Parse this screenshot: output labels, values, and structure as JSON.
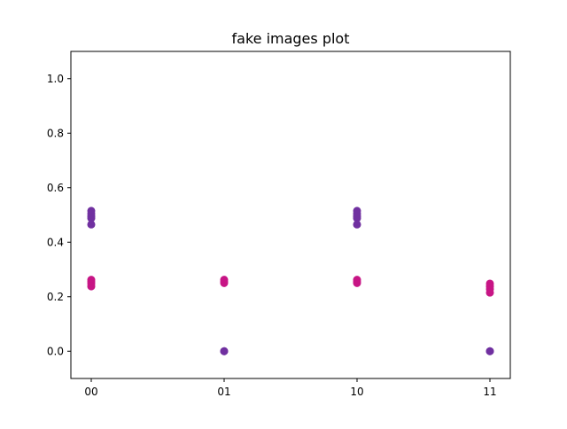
{
  "chart_data": {
    "type": "scatter",
    "title": "fake images plot",
    "xlabel": "",
    "ylabel": "",
    "categories": [
      "00",
      "01",
      "10",
      "11"
    ],
    "ylim": [
      -0.1,
      1.1
    ],
    "yticks": [
      0.0,
      0.2,
      0.4,
      0.6,
      0.8,
      1.0
    ],
    "ytick_labels": [
      "0.0",
      "0.2",
      "0.4",
      "0.6",
      "0.8",
      "1.0"
    ],
    "grid": false,
    "legend": "none",
    "series": [
      {
        "color": "#7030a0",
        "points": [
          {
            "x": "00",
            "y": 0.515
          },
          {
            "x": "00",
            "y": 0.505
          },
          {
            "x": "00",
            "y": 0.495
          },
          {
            "x": "00",
            "y": 0.488
          },
          {
            "x": "00",
            "y": 0.465
          },
          {
            "x": "01",
            "y": 0.0
          },
          {
            "x": "01",
            "y": 0.0
          },
          {
            "x": "10",
            "y": 0.515
          },
          {
            "x": "10",
            "y": 0.505
          },
          {
            "x": "10",
            "y": 0.495
          },
          {
            "x": "10",
            "y": 0.488
          },
          {
            "x": "10",
            "y": 0.465
          },
          {
            "x": "11",
            "y": 0.0
          },
          {
            "x": "11",
            "y": 0.0
          }
        ]
      },
      {
        "color": "#c71585",
        "points": [
          {
            "x": "00",
            "y": 0.262
          },
          {
            "x": "00",
            "y": 0.255
          },
          {
            "x": "00",
            "y": 0.248
          },
          {
            "x": "00",
            "y": 0.238
          },
          {
            "x": "01",
            "y": 0.262
          },
          {
            "x": "01",
            "y": 0.255
          },
          {
            "x": "01",
            "y": 0.25
          },
          {
            "x": "10",
            "y": 0.262
          },
          {
            "x": "10",
            "y": 0.255
          },
          {
            "x": "10",
            "y": 0.25
          },
          {
            "x": "11",
            "y": 0.248
          },
          {
            "x": "11",
            "y": 0.238
          },
          {
            "x": "11",
            "y": 0.228
          },
          {
            "x": "11",
            "y": 0.215
          }
        ]
      }
    ]
  }
}
